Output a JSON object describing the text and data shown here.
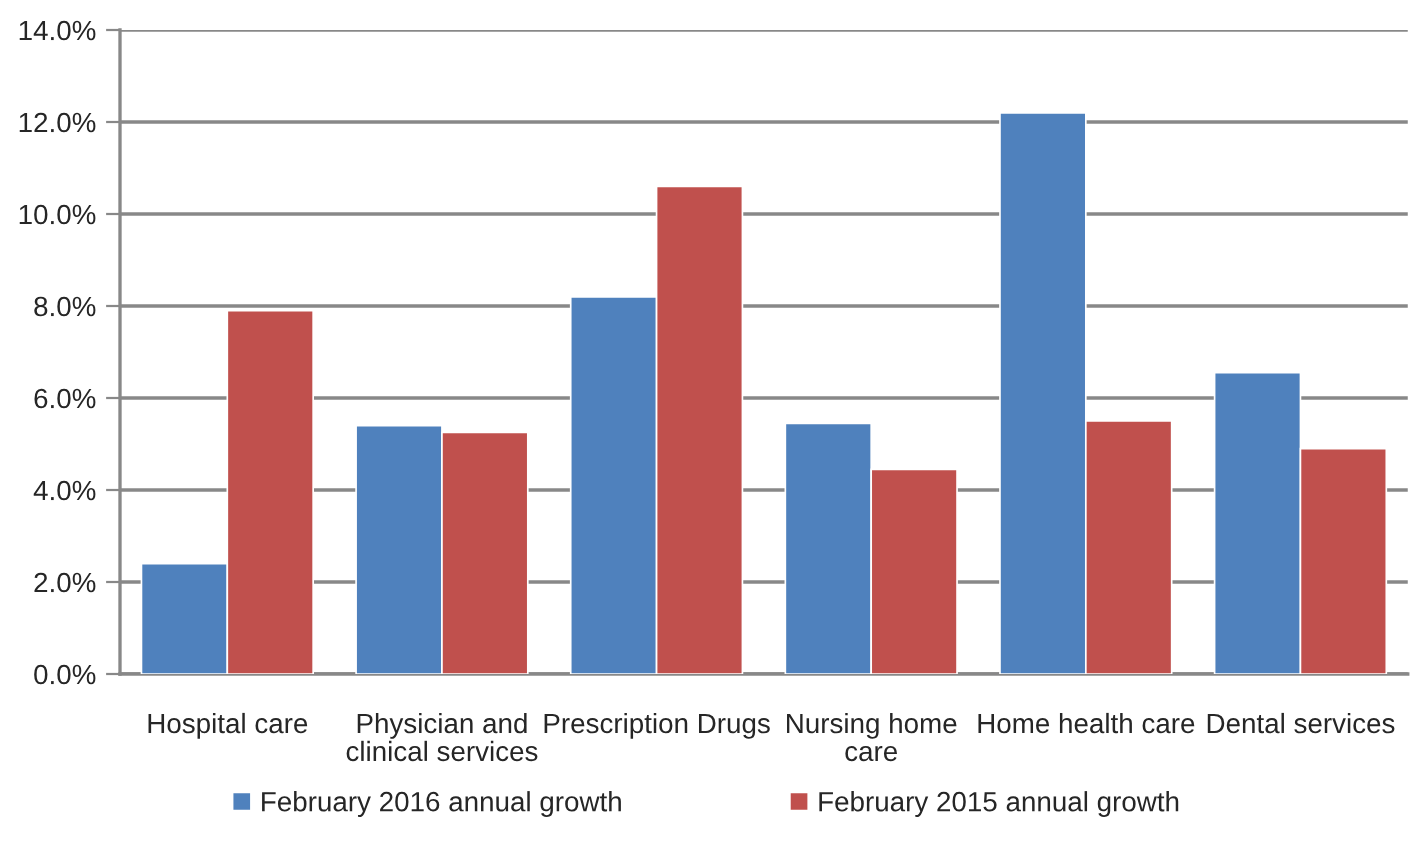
{
  "chart_data": {
    "type": "bar",
    "categories": [
      "Hospital care",
      "Physician and\nclinical services",
      "Prescription Drugs",
      "Nursing home\ncare",
      "Home health care",
      "Dental services"
    ],
    "series": [
      {
        "name": "February 2016 annual growth",
        "color": "#4f81bd",
        "values": [
          2.4,
          5.4,
          8.2,
          5.45,
          12.2,
          6.55
        ]
      },
      {
        "name": "February 2015 annual growth",
        "color": "#c0504d",
        "values": [
          7.9,
          5.25,
          10.6,
          4.45,
          5.5,
          4.9
        ]
      }
    ],
    "ylim": [
      0,
      14
    ],
    "yticks": [
      {
        "value": 0,
        "label": "0.0%"
      },
      {
        "value": 2,
        "label": "2.0%"
      },
      {
        "value": 4,
        "label": "4.0%"
      },
      {
        "value": 6,
        "label": "6.0%"
      },
      {
        "value": 8,
        "label": "8.0%"
      },
      {
        "value": 10,
        "label": "10.0%"
      },
      {
        "value": 12,
        "label": "12.0%"
      },
      {
        "value": 14,
        "label": "14.0%"
      }
    ],
    "grid": "y",
    "legend": "bottom"
  }
}
